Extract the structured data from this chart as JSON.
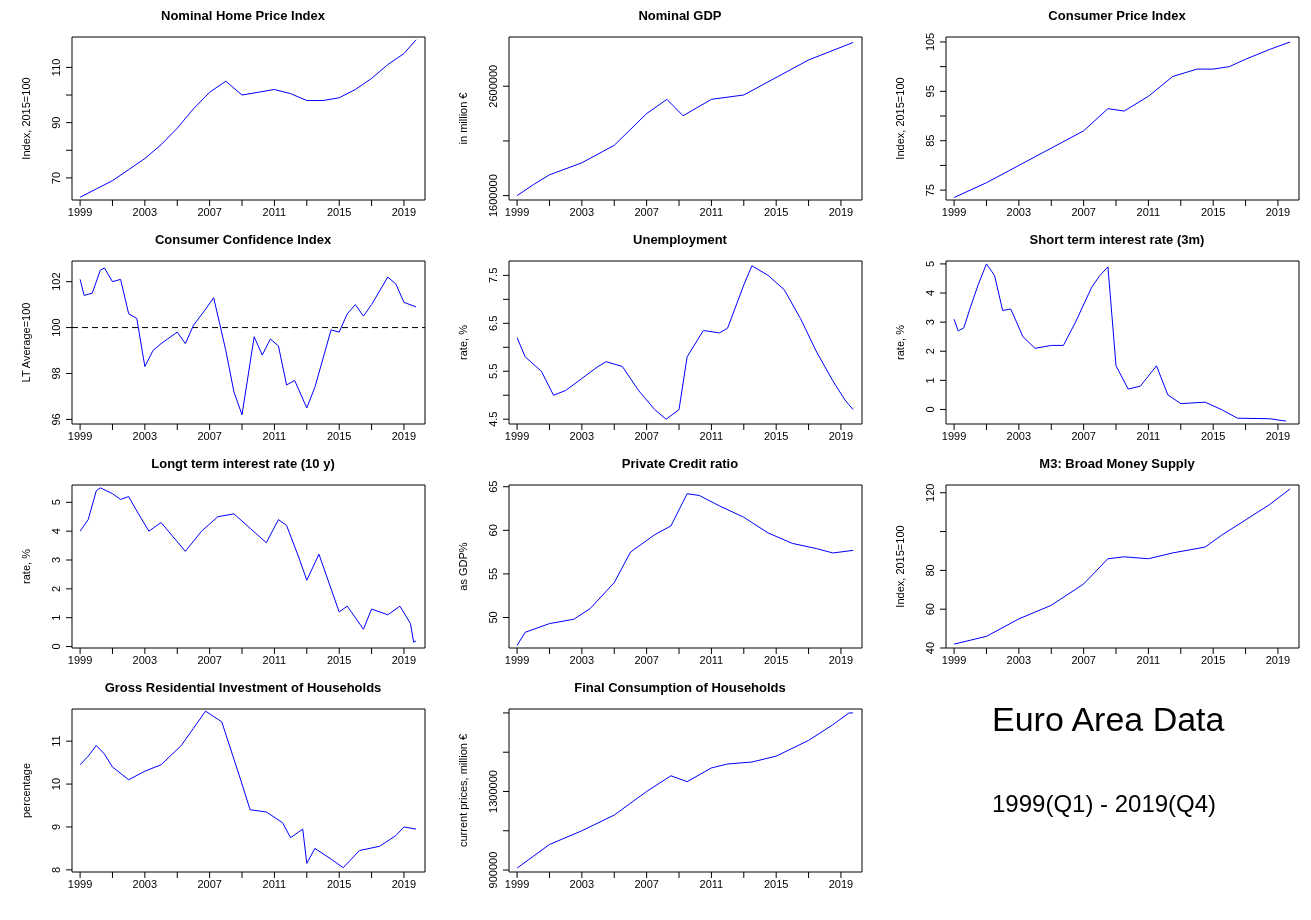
{
  "chart_data": [
    {
      "type": "line",
      "title": "Nominal Home Price Index",
      "ylabel": "Index, 2015=100",
      "xlim": [
        1998.5,
        2020.3
      ],
      "xticks": [
        1999,
        {
          "value": 2001,
          "label": null
        },
        2003,
        {
          "value": 2005,
          "label": null
        },
        2007,
        {
          "value": 2009,
          "label": null
        },
        2011,
        {
          "value": 2013,
          "label": null
        },
        2015,
        {
          "value": 2017,
          "label": null
        },
        2019
      ],
      "ylim": [
        62,
        121
      ],
      "yticks": [
        70,
        {
          "value": 80,
          "label": null
        },
        90,
        {
          "value": 100,
          "label": null
        },
        110
      ],
      "series": [
        {
          "color": "#0000ff",
          "x": [
            1999,
            2000,
            2001,
            2002,
            2003,
            2004,
            2005,
            2006,
            2007,
            2008,
            2009,
            2010,
            2011,
            2012,
            2013,
            2014,
            2015,
            2016,
            2017,
            2018,
            2019,
            2019.75
          ],
          "values": [
            63,
            66,
            69,
            73,
            77,
            82,
            88,
            95,
            101,
            105,
            100,
            101,
            102,
            100.5,
            98,
            98,
            99,
            102,
            106,
            111,
            115,
            120
          ]
        }
      ]
    },
    {
      "type": "line",
      "title": "Nominal GDP",
      "ylabel": "in million €",
      "xlim": [
        1998.5,
        2020.3
      ],
      "xticks": [
        1999,
        {
          "value": 2001,
          "label": null
        },
        2003,
        {
          "value": 2005,
          "label": null
        },
        2007,
        {
          "value": 2009,
          "label": null
        },
        2011,
        {
          "value": 2013,
          "label": null
        },
        2015,
        {
          "value": 2017,
          "label": null
        },
        2019
      ],
      "ylim": [
        1560000,
        3050000
      ],
      "yticks": [
        1600000,
        {
          "value": 2100000,
          "label": null
        },
        2600000
      ],
      "series": [
        {
          "color": "#0000ff",
          "x": [
            1999,
            2000,
            2001,
            2003,
            2005,
            2007,
            2008.25,
            2009.25,
            2011,
            2013,
            2015,
            2017,
            2019.75
          ],
          "values": [
            1600000,
            1700000,
            1790000,
            1900000,
            2060000,
            2350000,
            2480000,
            2330000,
            2480000,
            2520000,
            2680000,
            2840000,
            3000000
          ]
        }
      ]
    },
    {
      "type": "line",
      "title": "Consumer Price Index",
      "ylabel": "Index, 2015=100",
      "xlim": [
        1998.5,
        2020.3
      ],
      "xticks": [
        1999,
        {
          "value": 2001,
          "label": null
        },
        2003,
        {
          "value": 2005,
          "label": null
        },
        2007,
        {
          "value": 2009,
          "label": null
        },
        2011,
        {
          "value": 2013,
          "label": null
        },
        2015,
        {
          "value": 2017,
          "label": null
        },
        2019
      ],
      "ylim": [
        73,
        106
      ],
      "yticks": [
        75,
        {
          "value": 80,
          "label": null
        },
        85,
        {
          "value": 90,
          "label": null
        },
        95,
        {
          "value": 100,
          "label": null
        },
        105
      ],
      "series": [
        {
          "color": "#0000ff",
          "x": [
            1999,
            2001,
            2003,
            2005,
            2007,
            2008.5,
            2009.5,
            2011,
            2012.5,
            2014,
            2015,
            2016,
            2017,
            2018.5,
            2019.75
          ],
          "values": [
            73.5,
            76.5,
            80,
            83.5,
            87,
            91.5,
            91,
            94,
            98,
            99.5,
            99.5,
            100,
            101.5,
            103.5,
            105
          ]
        }
      ]
    },
    {
      "type": "line",
      "title": "Consumer Confidence Index",
      "ylabel": "LT Average=100",
      "xlim": [
        1998.5,
        2020.3
      ],
      "xticks": [
        1999,
        {
          "value": 2001,
          "label": null
        },
        2003,
        {
          "value": 2005,
          "label": null
        },
        2007,
        {
          "value": 2009,
          "label": null
        },
        2011,
        {
          "value": 2013,
          "label": null
        },
        2015,
        {
          "value": 2017,
          "label": null
        },
        2019
      ],
      "ylim": [
        95.8,
        102.9
      ],
      "yticks": [
        96,
        98,
        100,
        102
      ],
      "ref_lines": [
        {
          "axis": "y",
          "value": 100,
          "color": "#000000",
          "line_style": "dashed"
        }
      ],
      "series": [
        {
          "color": "#0000ff",
          "x": [
            1999,
            1999.25,
            1999.75,
            2000.25,
            2000.5,
            2001,
            2001.5,
            2002,
            2002.5,
            2003,
            2003.5,
            2004,
            2005,
            2005.5,
            2006,
            2006.75,
            2007.25,
            2008,
            2008.5,
            2009,
            2009.75,
            2010.25,
            2010.75,
            2011.25,
            2011.75,
            2012.25,
            2013,
            2013.5,
            2014.5,
            2015,
            2015.5,
            2016,
            2016.5,
            2017,
            2018,
            2018.5,
            2019,
            2019.75
          ],
          "values": [
            102.1,
            101.4,
            101.5,
            102.5,
            102.6,
            102,
            102.1,
            100.6,
            100.4,
            98.3,
            99,
            99.3,
            99.8,
            99.3,
            100.1,
            100.8,
            101.3,
            99,
            97.2,
            96.2,
            99.6,
            98.8,
            99.5,
            99.2,
            97.5,
            97.7,
            96.5,
            97.4,
            99.9,
            99.8,
            100.6,
            101,
            100.5,
            101,
            102.2,
            101.9,
            101.1,
            100.9
          ]
        }
      ]
    },
    {
      "type": "line",
      "title": "Unemployment",
      "ylabel": "rate, %",
      "xlim": [
        1998.5,
        2020.3
      ],
      "xticks": [
        1999,
        {
          "value": 2001,
          "label": null
        },
        2003,
        {
          "value": 2005,
          "label": null
        },
        2007,
        {
          "value": 2009,
          "label": null
        },
        2011,
        {
          "value": 2013,
          "label": null
        },
        2015,
        {
          "value": 2017,
          "label": null
        },
        2019
      ],
      "ylim": [
        4.4,
        7.8
      ],
      "yticks": [
        4.5,
        {
          "value": 5,
          "label": null
        },
        5.5,
        {
          "value": 6,
          "label": null
        },
        6.5,
        {
          "value": 7,
          "label": null
        },
        7.5
      ],
      "series": [
        {
          "color": "#0000ff",
          "x": [
            1999,
            1999.5,
            2000.5,
            2001.25,
            2002,
            2003,
            2004,
            2004.5,
            2005.5,
            2006.5,
            2007.5,
            2008.2,
            2009,
            2009.5,
            2010.5,
            2011.5,
            2012,
            2013,
            2013.5,
            2014.5,
            2015.5,
            2016.5,
            2017.5,
            2018.5,
            2019.25,
            2019.75
          ],
          "values": [
            6.2,
            5.8,
            5.5,
            5.0,
            5.1,
            5.35,
            5.6,
            5.7,
            5.6,
            5.1,
            4.7,
            4.5,
            4.7,
            5.8,
            6.35,
            6.3,
            6.4,
            7.3,
            7.7,
            7.5,
            7.2,
            6.6,
            5.9,
            5.3,
            4.9,
            4.7
          ]
        }
      ]
    },
    {
      "type": "line",
      "title": "Short term interest rate (3m)",
      "ylabel": "rate, %",
      "xlim": [
        1998.5,
        2020.3
      ],
      "xticks": [
        1999,
        {
          "value": 2001,
          "label": null
        },
        2003,
        {
          "value": 2005,
          "label": null
        },
        2007,
        {
          "value": 2009,
          "label": null
        },
        2011,
        {
          "value": 2013,
          "label": null
        },
        2015,
        {
          "value": 2017,
          "label": null
        },
        2019
      ],
      "ylim": [
        -0.5,
        5.1
      ],
      "yticks": [
        0,
        1,
        2,
        3,
        4,
        5
      ],
      "series": [
        {
          "color": "#0000ff",
          "x": [
            1999,
            1999.25,
            1999.6,
            2000,
            2000.5,
            2001,
            2001.5,
            2002,
            2002.5,
            2003.25,
            2004,
            2005,
            2005.75,
            2006.5,
            2007.5,
            2008,
            2008.5,
            2009,
            2009.75,
            2010.5,
            2011.5,
            2012.2,
            2013,
            2014.5,
            2015.5,
            2016.5,
            2018.5,
            2019.5
          ],
          "values": [
            3.1,
            2.7,
            2.8,
            3.5,
            4.3,
            5.0,
            4.6,
            3.4,
            3.45,
            2.5,
            2.1,
            2.2,
            2.2,
            3.0,
            4.2,
            4.6,
            4.9,
            1.5,
            0.7,
            0.8,
            1.5,
            0.5,
            0.2,
            0.25,
            0,
            -0.3,
            -0.32,
            -0.4
          ]
        }
      ]
    },
    {
      "type": "line",
      "title": "Longt term interest rate (10 y)",
      "ylabel": "rate, %",
      "xlim": [
        1998.5,
        2020.3
      ],
      "xticks": [
        1999,
        {
          "value": 2001,
          "label": null
        },
        2003,
        {
          "value": 2005,
          "label": null
        },
        2007,
        {
          "value": 2009,
          "label": null
        },
        2011,
        {
          "value": 2013,
          "label": null
        },
        2015,
        {
          "value": 2017,
          "label": null
        },
        2019
      ],
      "ylim": [
        -0.05,
        5.6
      ],
      "yticks": [
        0,
        1,
        2,
        3,
        4,
        5
      ],
      "series": [
        {
          "color": "#0000ff",
          "x": [
            1999,
            1999.5,
            2000,
            2000.25,
            2001,
            2001.5,
            2002,
            2002.5,
            2003.25,
            2004,
            2005.5,
            2006.5,
            2007.5,
            2008.5,
            2009.5,
            2010.5,
            2011.25,
            2011.75,
            2012.5,
            2013,
            2013.75,
            2014.5,
            2015,
            2015.5,
            2016.5,
            2017,
            2018,
            2018.75,
            2019.4,
            2019.6,
            2019.75
          ],
          "values": [
            4.0,
            4.4,
            5.4,
            5.5,
            5.3,
            5.1,
            5.2,
            4.7,
            4.0,
            4.3,
            3.3,
            4.0,
            4.5,
            4.6,
            4.1,
            3.6,
            4.4,
            4.2,
            3.1,
            2.3,
            3.2,
            2.0,
            1.2,
            1.4,
            0.6,
            1.3,
            1.1,
            1.4,
            0.8,
            0.15,
            0.2
          ]
        }
      ]
    },
    {
      "type": "line",
      "title": "Private Credit ratio",
      "ylabel": "as GDP%",
      "xlim": [
        1998.5,
        2020.3
      ],
      "xticks": [
        1999,
        {
          "value": 2001,
          "label": null
        },
        2003,
        {
          "value": 2005,
          "label": null
        },
        2007,
        {
          "value": 2009,
          "label": null
        },
        2011,
        {
          "value": 2013,
          "label": null
        },
        2015,
        {
          "value": 2017,
          "label": null
        },
        2019
      ],
      "ylim": [
        46.5,
        65.2
      ],
      "yticks": [
        50,
        55,
        60,
        65
      ],
      "series": [
        {
          "color": "#0000ff",
          "x": [
            1999,
            1999.5,
            2001,
            2002.5,
            2003.5,
            2005,
            2006,
            2007.5,
            2008.5,
            2009.5,
            2010.25,
            2011.5,
            2013,
            2014.5,
            2016,
            2017.5,
            2018.5,
            2019.75
          ],
          "values": [
            46.8,
            48.3,
            49.3,
            49.8,
            51,
            54,
            57.5,
            59.5,
            60.5,
            64.2,
            64,
            62.8,
            61.5,
            59.7,
            58.5,
            57.9,
            57.4,
            57.7
          ]
        }
      ]
    },
    {
      "type": "line",
      "title": "M3: Broad Money Supply",
      "ylabel": "Index, 2015=100",
      "xlim": [
        1998.5,
        2020.3
      ],
      "xticks": [
        1999,
        {
          "value": 2001,
          "label": null
        },
        2003,
        {
          "value": 2005,
          "label": null
        },
        2007,
        {
          "value": 2009,
          "label": null
        },
        2011,
        {
          "value": 2013,
          "label": null
        },
        2015,
        {
          "value": 2017,
          "label": null
        },
        2019
      ],
      "ylim": [
        40,
        124
      ],
      "yticks": [
        40,
        60,
        80,
        {
          "value": 100,
          "label": null
        },
        120
      ],
      "series": [
        {
          "color": "#0000ff",
          "x": [
            1999,
            2001,
            2003,
            2005,
            2007,
            2008.5,
            2009.5,
            2011,
            2012.5,
            2014.5,
            2015.5,
            2017,
            2018.5,
            2019.75
          ],
          "values": [
            42,
            46,
            55,
            62,
            73,
            86,
            87,
            86,
            89,
            92,
            98,
            106,
            114,
            122
          ]
        }
      ]
    },
    {
      "type": "line",
      "title": "Gross Residential Investment of Households",
      "ylabel": "percentage",
      "xlim": [
        1998.5,
        2020.3
      ],
      "xticks": [
        1999,
        {
          "value": 2001,
          "label": null
        },
        2003,
        {
          "value": 2005,
          "label": null
        },
        2007,
        {
          "value": 2009,
          "label": null
        },
        2011,
        {
          "value": 2013,
          "label": null
        },
        2015,
        {
          "value": 2017,
          "label": null
        },
        2019
      ],
      "ylim": [
        7.95,
        11.75
      ],
      "yticks": [
        8,
        9,
        10,
        11
      ],
      "series": [
        {
          "color": "#0000ff",
          "x": [
            1999,
            1999.5,
            2000,
            2000.5,
            2001,
            2002,
            2003,
            2004,
            2005.25,
            2006,
            2006.75,
            2007.75,
            2009,
            2009.5,
            2010.5,
            2011.5,
            2012,
            2012.75,
            2013,
            2013.5,
            2014.5,
            2015.25,
            2016.25,
            2017.5,
            2018.5,
            2019,
            2019.75
          ],
          "values": [
            10.45,
            10.65,
            10.9,
            10.7,
            10.4,
            10.1,
            10.3,
            10.45,
            10.9,
            11.3,
            11.7,
            11.45,
            10.0,
            9.4,
            9.35,
            9.1,
            8.75,
            8.95,
            8.15,
            8.5,
            8.25,
            8.05,
            8.45,
            8.55,
            8.8,
            9.0,
            8.95
          ]
        }
      ]
    },
    {
      "type": "line",
      "title": "Final Consumption of Households",
      "ylabel": "current prices, million €",
      "xlim": [
        1998.5,
        2020.3
      ],
      "xticks": [
        1999,
        {
          "value": 2001,
          "label": null
        },
        2003,
        {
          "value": 2005,
          "label": null
        },
        2007,
        {
          "value": 2009,
          "label": null
        },
        2011,
        {
          "value": 2013,
          "label": null
        },
        2015,
        {
          "value": 2017,
          "label": null
        },
        2019
      ],
      "ylim": [
        890000,
        1720000
      ],
      "yticks": [
        900000,
        {
          "value": 1100000,
          "label": null
        },
        1300000,
        {
          "value": 1500000,
          "label": null
        },
        {
          "value": 1700000,
          "label": null
        }
      ],
      "series": [
        {
          "color": "#0000ff",
          "x": [
            1999,
            2000,
            2001,
            2003,
            2005,
            2007,
            2008.5,
            2009.5,
            2011,
            2012,
            2013.5,
            2015,
            2017,
            2018.5,
            2019.5,
            2019.75
          ],
          "values": [
            910000,
            970000,
            1030000,
            1100000,
            1180000,
            1300000,
            1380000,
            1350000,
            1420000,
            1440000,
            1450000,
            1480000,
            1560000,
            1640000,
            1700000,
            1700000
          ]
        }
      ]
    },
    {
      "type": "other",
      "title": "Euro Area Data",
      "subtitle": "1999(Q1) - 2019(Q4)"
    }
  ]
}
